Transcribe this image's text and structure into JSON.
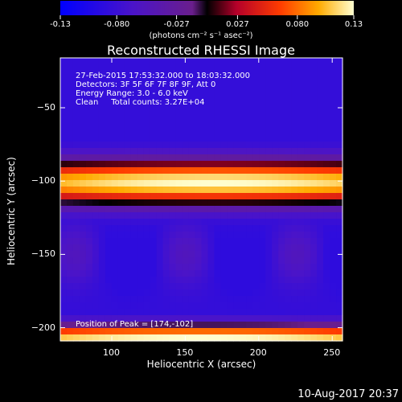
{
  "colorbar": {
    "tick_labels": [
      "-0.13",
      "-0.080",
      "-0.027",
      "0.027",
      "0.080",
      "0.13"
    ],
    "tick_values": [
      -0.13,
      -0.08,
      -0.027,
      0.027,
      0.08,
      0.13
    ],
    "units": "(photons cm⁻² s⁻¹ asec⁻²)"
  },
  "chart_data": {
    "type": "heatmap",
    "title": "Reconstructed RHESSI Image",
    "xlabel": "Heliocentric X (arcsec)",
    "ylabel": "Heliocentric Y (arcsec)",
    "xlim": [
      65,
      257
    ],
    "ylim": [
      -209,
      -16
    ],
    "x_ticks": [
      100,
      150,
      200,
      250
    ],
    "y_ticks": [
      -50,
      -100,
      -150,
      -200
    ],
    "x_tick_labels": [
      "100",
      "150",
      "200",
      "250"
    ],
    "y_tick_labels": [
      "−50",
      "−100",
      "−150",
      "−200"
    ],
    "value_range": [
      -0.13,
      0.13
    ],
    "peak_position": [
      174,
      -102
    ],
    "bands": [
      {
        "y_center": -101,
        "y_halfwidth": 15,
        "x_center": 170,
        "peak_value": 0.13
      },
      {
        "y_center": -207,
        "y_halfwidth": 9,
        "x_center": 160,
        "peak_value": 0.13
      }
    ],
    "annotations": [
      "27-Feb-2015 17:53:32.000 to 18:03:32.000",
      "Detectors: 3F 5F 6F 7F 8F 9F, Att 0",
      "Energy Range: 3.0 - 6.0 keV",
      "Clean     Total counts: 3.27E+04",
      "Position of Peak = [174,-102]"
    ]
  },
  "timestamp": "10-Aug-2017 20:37"
}
